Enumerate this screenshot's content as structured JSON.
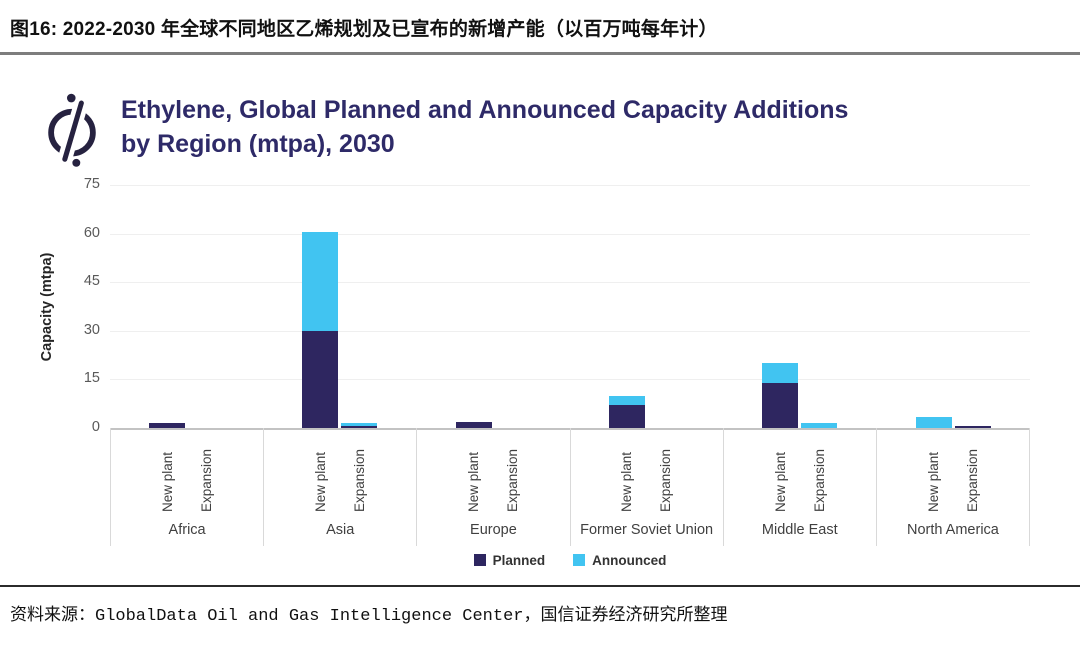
{
  "page": {
    "figure_title": "图16: 2022-2030 年全球不同地区乙烯规划及已宣布的新增产能（以百万吨每年计）",
    "source_line": "资料来源：GlobalData Oil and Gas Intelligence Center，国信证券经济研究所整理"
  },
  "chart_data": {
    "type": "bar",
    "stacked": true,
    "title": "Ethylene, Global Planned and Announced Capacity Additions by Region (mtpa), 2030",
    "title_lines": [
      "Ethylene, Global Planned and Announced Capacity Additions",
      "by Region (mtpa), 2030"
    ],
    "title_color": "#2e2a68",
    "logo_icon": "globaldata-compass-icon",
    "xlabel": "",
    "ylabel": "Capacity (mtpa)",
    "ylim": [
      0,
      75
    ],
    "yticks": [
      0,
      15,
      30,
      45,
      60,
      75
    ],
    "grid": true,
    "legend_position": "bottom",
    "groups": [
      "Africa",
      "Asia",
      "Europe",
      "Former Soviet Union",
      "Middle East",
      "North America"
    ],
    "bar_labels": [
      "New plant",
      "Expansion"
    ],
    "series": [
      {
        "name": "Planned",
        "color": "#2e2660",
        "values": [
          [
            1.5,
            0
          ],
          [
            30,
            0.5
          ],
          [
            2,
            0
          ],
          [
            7,
            0
          ],
          [
            14,
            0
          ],
          [
            0,
            0.5
          ]
        ]
      },
      {
        "name": "Announced",
        "color": "#41c4f1",
        "values": [
          [
            0,
            0
          ],
          [
            30.5,
            1
          ],
          [
            0,
            0
          ],
          [
            3,
            0
          ],
          [
            6,
            1.5
          ],
          [
            3.5,
            0
          ]
        ]
      }
    ]
  }
}
